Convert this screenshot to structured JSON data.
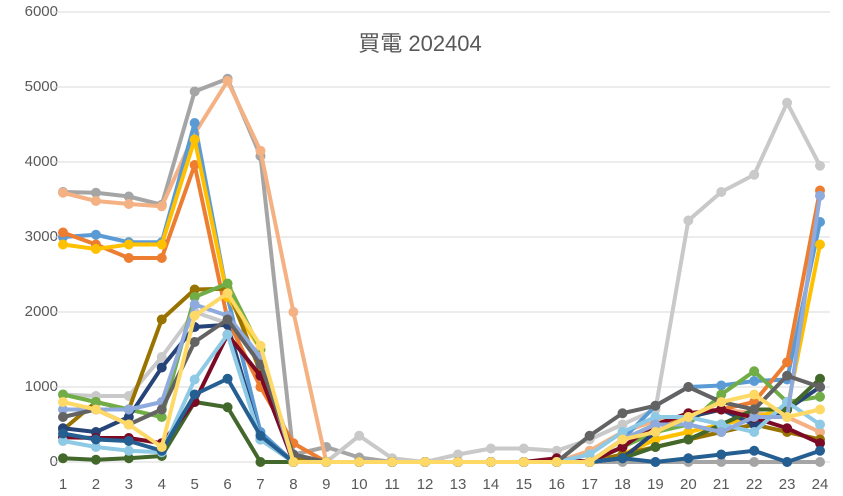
{
  "chart_data": {
    "type": "line",
    "title": "買電 202404",
    "x": [
      1,
      2,
      3,
      4,
      5,
      6,
      7,
      8,
      9,
      10,
      11,
      12,
      13,
      14,
      15,
      16,
      17,
      18,
      19,
      20,
      21,
      22,
      23,
      24
    ],
    "xlim": [
      1,
      24
    ],
    "ylim": [
      0,
      6000
    ],
    "yticks": [
      0,
      1000,
      2000,
      3000,
      4000,
      5000,
      6000
    ],
    "grid": true,
    "series": [
      {
        "color": "#a5a5a5",
        "values": [
          3600,
          3590,
          3540,
          3430,
          4940,
          5110,
          4080,
          100,
          200,
          60,
          0,
          0,
          0,
          0,
          0,
          0,
          0,
          0,
          0,
          0,
          0,
          0,
          0,
          0
        ]
      },
      {
        "color": "#f4b183",
        "values": [
          3590,
          3480,
          3440,
          3410,
          4380,
          5080,
          4150,
          2000,
          0,
          0,
          0,
          0,
          0,
          0,
          0,
          0,
          150,
          400,
          550,
          600,
          700,
          650,
          600,
          400
        ]
      },
      {
        "color": "#c9c9c9",
        "values": [
          900,
          880,
          880,
          1400,
          2000,
          1850,
          1400,
          100,
          0,
          350,
          50,
          0,
          100,
          180,
          180,
          150,
          300,
          500,
          700,
          3220,
          3600,
          3830,
          4790,
          3950
        ]
      },
      {
        "color": "#5b9bd5",
        "values": [
          3000,
          3030,
          2930,
          2930,
          4520,
          2200,
          400,
          0,
          0,
          0,
          0,
          0,
          0,
          0,
          0,
          0,
          0,
          300,
          750,
          1000,
          1020,
          1080,
          1100,
          3200
        ]
      },
      {
        "color": "#ed7d31",
        "values": [
          3060,
          2900,
          2720,
          2720,
          3960,
          1900,
          1000,
          250,
          0,
          0,
          0,
          0,
          0,
          0,
          0,
          0,
          0,
          300,
          500,
          600,
          700,
          800,
          1330,
          3620
        ]
      },
      {
        "color": "#ffc000",
        "values": [
          2900,
          2840,
          2900,
          2900,
          4300,
          2200,
          1500,
          0,
          0,
          0,
          0,
          0,
          0,
          0,
          0,
          0,
          0,
          100,
          300,
          400,
          500,
          600,
          700,
          2900
        ]
      },
      {
        "color": "#997300",
        "values": [
          430,
          800,
          700,
          1900,
          2300,
          2310,
          1200,
          50,
          0,
          0,
          0,
          0,
          0,
          0,
          0,
          0,
          0,
          100,
          200,
          300,
          400,
          500,
          400,
          300
        ]
      },
      {
        "color": "#70ad47",
        "values": [
          900,
          800,
          700,
          600,
          2200,
          2380,
          1500,
          0,
          0,
          0,
          0,
          0,
          0,
          0,
          0,
          0,
          0,
          200,
          400,
          500,
          900,
          1210,
          800,
          870
        ]
      },
      {
        "color": "#264478",
        "values": [
          450,
          400,
          600,
          1260,
          1800,
          1830,
          300,
          0,
          0,
          0,
          0,
          0,
          0,
          0,
          0,
          0,
          0,
          50,
          400,
          600,
          700,
          500,
          700,
          1000
        ]
      },
      {
        "color": "#43682b",
        "values": [
          50,
          30,
          50,
          80,
          800,
          730,
          0,
          0,
          0,
          0,
          0,
          0,
          0,
          0,
          0,
          0,
          0,
          50,
          200,
          300,
          500,
          700,
          700,
          1110
        ]
      },
      {
        "color": "#7b0b24",
        "values": [
          330,
          320,
          320,
          250,
          800,
          1700,
          1150,
          0,
          0,
          0,
          0,
          0,
          0,
          0,
          0,
          50,
          0,
          200,
          500,
          650,
          700,
          590,
          450,
          250
        ]
      },
      {
        "color": "#8ecae6",
        "values": [
          280,
          200,
          150,
          130,
          1100,
          1700,
          300,
          0,
          0,
          0,
          0,
          0,
          0,
          0,
          0,
          0,
          100,
          400,
          600,
          600,
          500,
          400,
          800,
          500
        ]
      },
      {
        "color": "#8faadc",
        "values": [
          700,
          700,
          700,
          800,
          2100,
          1950,
          1400,
          0,
          0,
          0,
          0,
          0,
          0,
          0,
          0,
          0,
          0,
          300,
          500,
          500,
          400,
          600,
          600,
          3550
        ]
      },
      {
        "color": "#255e91",
        "values": [
          380,
          300,
          280,
          150,
          900,
          1110,
          350,
          0,
          0,
          0,
          0,
          0,
          0,
          0,
          0,
          0,
          0,
          50,
          0,
          50,
          100,
          150,
          0,
          150
        ]
      },
      {
        "color": "#636363",
        "values": [
          600,
          700,
          500,
          700,
          1600,
          1900,
          1300,
          100,
          0,
          0,
          0,
          0,
          0,
          0,
          0,
          0,
          350,
          650,
          750,
          1000,
          800,
          700,
          1150,
          1000
        ]
      },
      {
        "color": "#ffd966",
        "values": [
          800,
          700,
          500,
          200,
          1950,
          2250,
          1550,
          0,
          0,
          0,
          0,
          0,
          0,
          0,
          0,
          0,
          0,
          300,
          400,
          600,
          800,
          900,
          600,
          700
        ]
      }
    ]
  }
}
